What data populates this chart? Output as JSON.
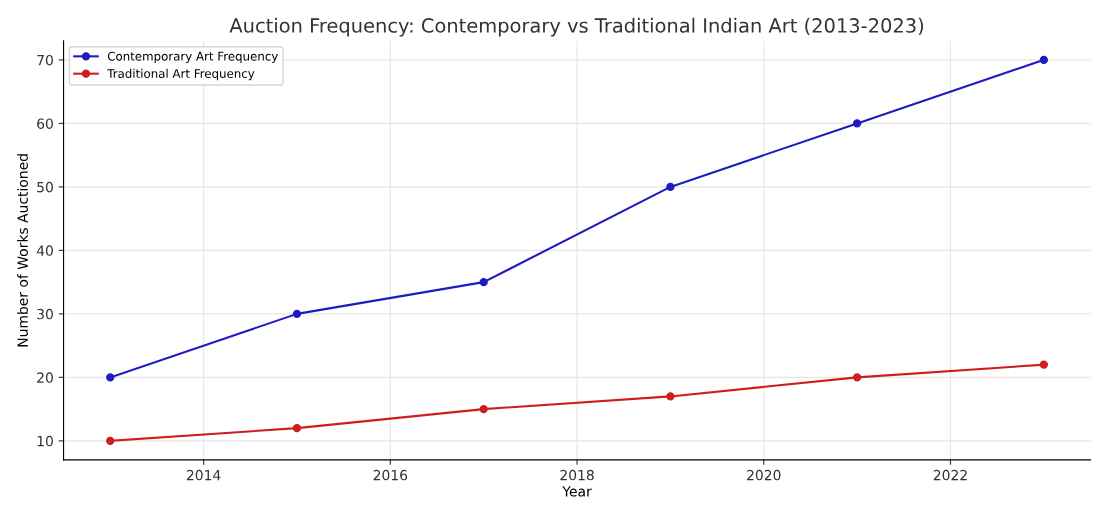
{
  "chart_data": {
    "type": "line",
    "title": "Auction Frequency: Contemporary vs Traditional Indian Art (2013-2023)",
    "xlabel": "Year",
    "ylabel": "Number of Works Auctioned",
    "x": [
      2013,
      2015,
      2017,
      2019,
      2021,
      2023
    ],
    "series": [
      {
        "name": "Contemporary Art Frequency",
        "color": "#1c1cc0",
        "values": [
          20,
          30,
          35,
          50,
          60,
          70
        ]
      },
      {
        "name": "Traditional Art Frequency",
        "color": "#d01c1c",
        "values": [
          10,
          12,
          15,
          17,
          20,
          22
        ]
      }
    ],
    "xlim": [
      2012.5,
      2023.5
    ],
    "xticks": [
      2014,
      2016,
      2018,
      2020,
      2022
    ],
    "ylim": [
      7,
      73
    ],
    "yticks": [
      10,
      20,
      30,
      40,
      50,
      60,
      70
    ],
    "grid": true,
    "legend": "top left",
    "marker": "circle",
    "line_style": "solid"
  }
}
